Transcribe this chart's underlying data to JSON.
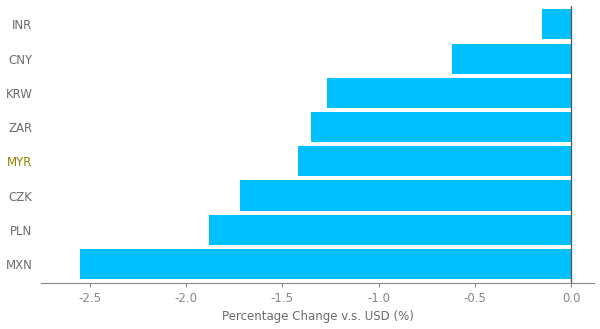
{
  "categories": [
    "MXN",
    "PLN",
    "CZK",
    "MYR",
    "ZAR",
    "KRW",
    "CNY",
    "INR"
  ],
  "values": [
    -2.55,
    -1.88,
    -1.72,
    -1.42,
    -1.35,
    -1.27,
    -0.62,
    -0.15
  ],
  "bar_color": "#00C0FF",
  "xlabel": "Percentage Change v.s. USD (%)",
  "xlim": [
    -2.75,
    0.12
  ],
  "xticks": [
    -2.5,
    -2.0,
    -1.5,
    -1.0,
    -0.5,
    0.0
  ],
  "background_color": "#ffffff",
  "bar_height": 0.88,
  "label_color_default": "#6B6B6B",
  "label_color_myr": "#8B8000",
  "spine_color": "#888888",
  "tick_color": "#888888",
  "xlabel_color": "#6B6B6B",
  "vline_color": "#555555",
  "figsize": [
    6.0,
    3.29
  ],
  "dpi": 100
}
